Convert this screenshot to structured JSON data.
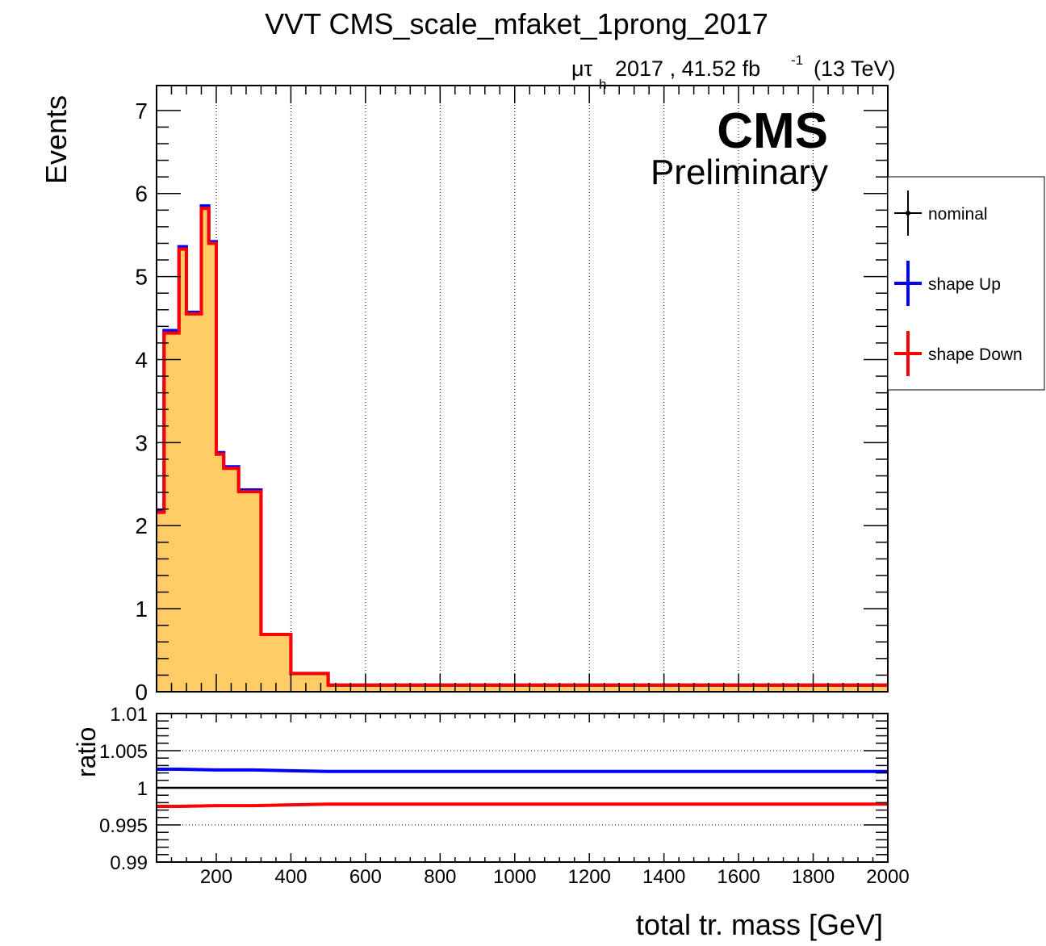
{
  "chart_data": [
    {
      "type": "histogram",
      "panel": "main",
      "title": "VVT CMS_scale_mfaket_1prong_2017",
      "channel_label": "μτ",
      "channel_sub": "h",
      "lumi_label": "2017 , 41.52 fb",
      "lumi_exp": "-1",
      "energy_label": "(13 TeV)",
      "cms_label": "CMS",
      "cms_sub": "Preliminary",
      "ylabel": "Events",
      "xlim": [
        40,
        2000
      ],
      "ylim": [
        0,
        7.3
      ],
      "y_ticks": [
        "0",
        "1",
        "2",
        "3",
        "4",
        "5",
        "6",
        "7"
      ],
      "grid_x": true,
      "legend_position": "right",
      "bin_edges": [
        40,
        60,
        80,
        100,
        120,
        140,
        160,
        180,
        200,
        220,
        240,
        260,
        280,
        320,
        400,
        500,
        2000
      ],
      "series": [
        {
          "name": "nominal",
          "color": "#000000",
          "fill": "#ffcc66",
          "values": [
            2.17,
            4.33,
            4.33,
            5.34,
            4.56,
            4.56,
            5.83,
            5.41,
            2.87,
            2.7,
            2.7,
            2.42,
            2.42,
            0.69,
            0.22,
            0.08
          ]
        },
        {
          "name": "shape Up",
          "color": "#0000ff",
          "values": [
            2.18,
            4.35,
            4.35,
            5.36,
            4.57,
            4.57,
            5.85,
            5.42,
            2.88,
            2.71,
            2.71,
            2.43,
            2.43,
            0.69,
            0.22,
            0.08
          ]
        },
        {
          "name": "shape Down",
          "color": "#ff0000",
          "values": [
            2.16,
            4.32,
            4.32,
            5.33,
            4.55,
            4.55,
            5.82,
            5.4,
            2.86,
            2.69,
            2.69,
            2.41,
            2.41,
            0.69,
            0.22,
            0.08
          ]
        }
      ]
    },
    {
      "type": "line",
      "panel": "ratio",
      "ylabel": "ratio",
      "xlabel": "total tr. mass [GeV]",
      "xlim": [
        40,
        2000
      ],
      "ylim": [
        0.99,
        1.01
      ],
      "y_ticks": [
        "0.99",
        "0.995",
        "1",
        "1.005",
        "1.01"
      ],
      "x_ticks": [
        "200",
        "400",
        "600",
        "800",
        "1000",
        "1200",
        "1400",
        "1600",
        "1800",
        "2000"
      ],
      "x": [
        40,
        100,
        200,
        300,
        400,
        500,
        2000
      ],
      "series": [
        {
          "name": "shape Up",
          "color": "#0000ff",
          "values": [
            1.0025,
            1.0025,
            1.0024,
            1.0024,
            1.0023,
            1.0022,
            1.0022
          ]
        },
        {
          "name": "shape Down",
          "color": "#ff0000",
          "values": [
            0.9975,
            0.9975,
            0.9976,
            0.9976,
            0.9977,
            0.9978,
            0.9978
          ]
        },
        {
          "name": "reference",
          "color": "#000000",
          "values": [
            1,
            1,
            1,
            1,
            1,
            1,
            1
          ]
        }
      ]
    }
  ],
  "legend": {
    "items": [
      {
        "label": "nominal",
        "color": "#000000"
      },
      {
        "label": "shape Up",
        "color": "#0000ff"
      },
      {
        "label": "shape Down",
        "color": "#ff0000"
      }
    ]
  }
}
